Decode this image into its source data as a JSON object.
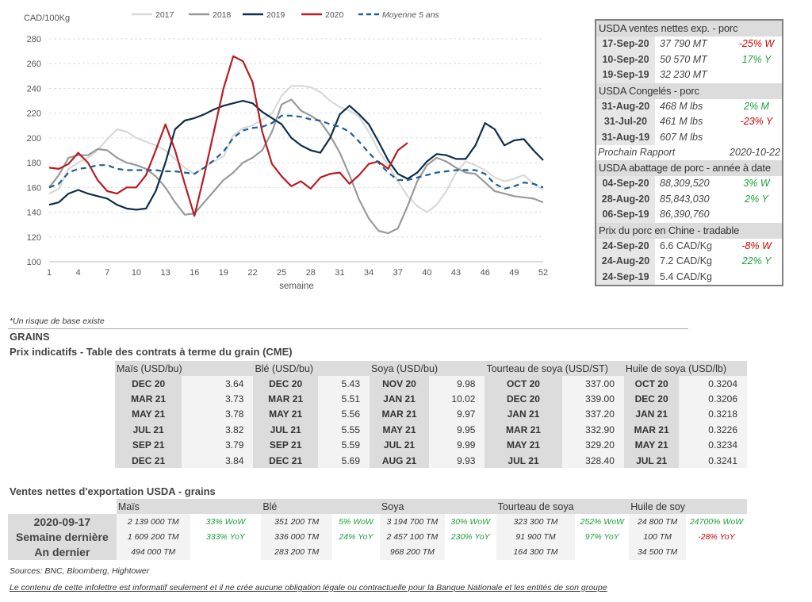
{
  "chart_data": {
    "type": "line",
    "ylabel": "CAD/100Kg",
    "xlabel": "semaine",
    "ylim": [
      100,
      280
    ],
    "xlim": [
      1,
      52
    ],
    "yticks": [
      100,
      120,
      140,
      160,
      180,
      200,
      220,
      240,
      260,
      280
    ],
    "xticks": [
      1,
      4,
      7,
      10,
      13,
      16,
      19,
      22,
      25,
      28,
      31,
      34,
      37,
      40,
      43,
      46,
      49,
      52
    ],
    "grid": true,
    "legend": "top",
    "series": [
      {
        "name": "2017",
        "color": "#d9d9d9",
        "dashed": false,
        "values": [
          155,
          159,
          175,
          180,
          184,
          190,
          199,
          207,
          205,
          200,
          197,
          194,
          190,
          183,
          176,
          171,
          176,
          181,
          185,
          202,
          208,
          210,
          215,
          220,
          234,
          242,
          242,
          241,
          237,
          230,
          225,
          222,
          217,
          205,
          190,
          178,
          165,
          153,
          145,
          140,
          146,
          157,
          172,
          181,
          178,
          174,
          168,
          165,
          167,
          170,
          163,
          158
        ]
      },
      {
        "name": "2018",
        "color": "#9a9a9a",
        "dashed": false,
        "values": [
          160,
          170,
          184,
          186,
          186,
          191,
          190,
          184,
          180,
          178,
          175,
          169,
          160,
          148,
          138,
          139,
          148,
          157,
          166,
          172,
          180,
          184,
          190,
          205,
          227,
          231,
          222,
          218,
          213,
          202,
          188,
          170,
          150,
          135,
          125,
          123,
          127,
          145,
          165,
          178,
          184,
          181,
          176,
          172,
          171,
          164,
          157,
          155,
          153,
          152,
          151,
          148
        ]
      },
      {
        "name": "2019",
        "color": "#0f2e4a",
        "dashed": false,
        "values": [
          146,
          148,
          155,
          158,
          155,
          153,
          151,
          146,
          143,
          142,
          143,
          157,
          180,
          207,
          214,
          216,
          219,
          223,
          226,
          228,
          230,
          228,
          221,
          216,
          211,
          200,
          194,
          190,
          188,
          200,
          219,
          226,
          219,
          211,
          197,
          182,
          171,
          167,
          172,
          181,
          187,
          186,
          183,
          183,
          194,
          212,
          207,
          194,
          198,
          199,
          190,
          182
        ]
      },
      {
        "name": "2020",
        "color": "#b81c22",
        "dashed": false,
        "values": [
          176,
          175,
          179,
          188,
          180,
          166,
          157,
          155,
          160,
          160,
          170,
          190,
          211,
          190,
          163,
          137,
          170,
          205,
          240,
          266,
          262,
          245,
          205,
          179,
          169,
          161,
          165,
          159,
          168,
          171,
          172,
          163,
          170,
          179,
          181,
          175,
          190,
          196
        ]
      },
      {
        "name": "Moyenne 5 ans",
        "color": "#1f5f96",
        "dashed": true,
        "values": [
          160,
          163,
          172,
          175,
          176,
          178,
          178,
          175,
          174,
          174,
          174,
          174,
          173,
          173,
          172,
          171,
          176,
          182,
          189,
          200,
          206,
          208,
          209,
          212,
          218,
          218,
          217,
          215,
          214,
          211,
          209,
          205,
          197,
          188,
          180,
          172,
          166,
          166,
          168,
          170,
          172,
          173,
          174,
          174,
          174,
          171,
          163,
          159,
          161,
          164,
          163,
          160
        ]
      }
    ]
  },
  "usda_box": {
    "sections": [
      {
        "title": "USDA ventes nettes exp. - porc",
        "italic": true,
        "rows": [
          {
            "date": "17-Sep-20",
            "value": "37 790  MT",
            "pct": "-25% W",
            "pct_color": "red"
          },
          {
            "date": "10-Sep-20",
            "value": "50 570  MT",
            "pct": "17% Y",
            "pct_color": "green"
          },
          {
            "date": "19-Sep-19",
            "value": "32 230  MT",
            "pct": "",
            "pct_color": ""
          }
        ]
      },
      {
        "title": "USDA Congelés - porc",
        "italic": true,
        "rows": [
          {
            "date": "31-Aug-20",
            "value": "468 M lbs",
            "pct": "2% M",
            "pct_color": "green"
          },
          {
            "date": "31-Jul-20",
            "value": "461 M lbs",
            "pct": "-23% Y",
            "pct_color": "red"
          },
          {
            "date": "31-Aug-19",
            "value": "607 M lbs",
            "pct": "",
            "pct_color": ""
          }
        ],
        "note": {
          "label": "Prochain Rapport",
          "value": "2020-10-22"
        }
      },
      {
        "title": "USDA abattage de porc - année à date",
        "italic": true,
        "rows": [
          {
            "date": "04-Sep-20",
            "value": "88,309,520",
            "pct": "3% W",
            "pct_color": "green"
          },
          {
            "date": "28-Aug-20",
            "value": "85,843,030",
            "pct": "2% Y",
            "pct_color": "green"
          },
          {
            "date": "06-Sep-19",
            "value": "86,390,760",
            "pct": "",
            "pct_color": ""
          }
        ]
      },
      {
        "title": "Prix du porc en Chine - tradable",
        "italic": false,
        "rows": [
          {
            "date": "24-Sep-20",
            "value": "6.6 CAD/Kg",
            "pct": "-8% W",
            "pct_color": "red"
          },
          {
            "date": "24-Aug-20",
            "value": "7.2 CAD/Kg",
            "pct": "22% Y",
            "pct_color": "green"
          },
          {
            "date": "24-Sep-19",
            "value": "5.4 CAD/Kg",
            "pct": "",
            "pct_color": ""
          }
        ]
      }
    ]
  },
  "footnote": "*Un risque de base existe",
  "grains_heading": "GRAINS",
  "futures": {
    "title": "Prix indicatifs - Table des contrats à terme du grain (CME)",
    "columns": [
      {
        "header": "Maïs (USD/bu)",
        "rows": [
          [
            "DEC 20",
            "3.64"
          ],
          [
            "MAR 21",
            "3.73"
          ],
          [
            "MAY 21",
            "3.78"
          ],
          [
            "JUL 21",
            "3.82"
          ],
          [
            "SEP 21",
            "3.79"
          ],
          [
            "DEC 21",
            "3.84"
          ]
        ]
      },
      {
        "header": "Blé (USD/bu)",
        "rows": [
          [
            "DEC 20",
            "5.43"
          ],
          [
            "MAR 21",
            "5.51"
          ],
          [
            "MAY 21",
            "5.56"
          ],
          [
            "JUL 21",
            "5.55"
          ],
          [
            "SEP 21",
            "5.59"
          ],
          [
            "DEC 21",
            "5.69"
          ]
        ]
      },
      {
        "header": "Soya (USD/bu)",
        "rows": [
          [
            "NOV 20",
            "9.98"
          ],
          [
            "JAN 21",
            "10.02"
          ],
          [
            "MAR 21",
            "9.97"
          ],
          [
            "MAY 21",
            "9.95"
          ],
          [
            "JUL 21",
            "9.99"
          ],
          [
            "AUG 21",
            "9.93"
          ]
        ]
      },
      {
        "header": "Tourteau de soya (USD/ST)",
        "rows": [
          [
            "OCT 20",
            "337.00"
          ],
          [
            "DEC 20",
            "339.00"
          ],
          [
            "JAN 21",
            "337.20"
          ],
          [
            "MAR 21",
            "332.90"
          ],
          [
            "MAY 21",
            "329.20"
          ],
          [
            "JUL 21",
            "328.40"
          ]
        ]
      },
      {
        "header": "Huile de soya (USD/lb)",
        "rows": [
          [
            "OCT 20",
            "0.3204"
          ],
          [
            "DEC 20",
            "0.3206"
          ],
          [
            "JAN 21",
            "0.3218"
          ],
          [
            "MAR 21",
            "0.3226"
          ],
          [
            "MAY 21",
            "0.3234"
          ],
          [
            "JUL 21",
            "0.3241"
          ]
        ]
      }
    ]
  },
  "exports": {
    "title": "Ventes nettes d'exportation USDA - grains",
    "row_labels": [
      "2020-09-17",
      "Semaine dernière",
      "An dernier"
    ],
    "columns": [
      {
        "header": "Maïs",
        "rows": [
          [
            "2 139 000 TM",
            "33% WoW",
            "green"
          ],
          [
            "1 609 200 TM",
            "333% YoY",
            "green"
          ],
          [
            "494 000 TM",
            "",
            ""
          ]
        ]
      },
      {
        "header": "Blé",
        "rows": [
          [
            "351 200 TM",
            "5% WoW",
            "green"
          ],
          [
            "336 000 TM",
            "24% YoY",
            "green"
          ],
          [
            "283 200 TM",
            "",
            ""
          ]
        ]
      },
      {
        "header": "Soya",
        "rows": [
          [
            "3 194 700 TM",
            "30% WoW",
            "green"
          ],
          [
            "2 457 100 TM",
            "230% YoY",
            "green"
          ],
          [
            "968 200 TM",
            "",
            ""
          ]
        ]
      },
      {
        "header": "Tourteau de soya",
        "rows": [
          [
            "323 300 TM",
            "252% WoW",
            "green"
          ],
          [
            "91 900 TM",
            "97% YoY",
            "green"
          ],
          [
            "164 300 TM",
            "",
            ""
          ]
        ]
      },
      {
        "header": "Huile de soy",
        "rows": [
          [
            "24 800 TM",
            "24700% WoW",
            "green"
          ],
          [
            "100 TM",
            "-28% YoY",
            "red"
          ],
          [
            "34 500 TM",
            "",
            ""
          ]
        ]
      }
    ]
  },
  "sources": "Sources: BNC, Bloomberg, Hightower",
  "disclaimer": "Le contenu de cette infolettre est informatif seulement et il ne crée aucune obligation légale ou contractuelle pour la Banque Nationale et les entités de son groupe"
}
